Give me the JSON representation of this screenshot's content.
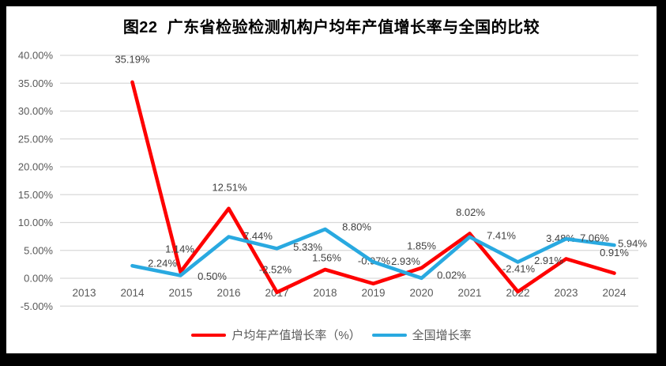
{
  "title": "图22  广东省检验检测机构户均年产值增长率与全国的比较",
  "chart_data": {
    "type": "line",
    "title": "图22  广东省检验检测机构户均年产值增长率与全国的比较",
    "categories": [
      "2013",
      "2014",
      "2015",
      "2016",
      "2017",
      "2018",
      "2019",
      "2020",
      "2021",
      "2022",
      "2023",
      "2024"
    ],
    "series": [
      {
        "name": "户均年产值增长率（%）",
        "color": "#FE0000",
        "values": [
          null,
          35.19,
          1.14,
          12.51,
          -2.52,
          1.56,
          -0.97,
          1.85,
          8.02,
          -2.41,
          3.48,
          0.91
        ],
        "labels": [
          "",
          "35.19%",
          "1.14%",
          "12.51%",
          "-2.52%",
          "1.56%",
          "-0.97%",
          "1.85%",
          "8.02%",
          "-2.41%",
          "3.48%",
          "0.91%"
        ]
      },
      {
        "name": "全国增长率",
        "color": "#29A9E0",
        "values": [
          null,
          2.24,
          0.5,
          7.44,
          5.33,
          8.8,
          2.93,
          0.02,
          7.41,
          2.91,
          7.06,
          5.94
        ],
        "labels": [
          "",
          "2.24%",
          "0.50%",
          "7.44%",
          "5.33%",
          "8.80%",
          "2.93%",
          "0.02%",
          "7.41%",
          "2.91%",
          "7.06%",
          "5.94%"
        ]
      }
    ],
    "ylim": [
      -5,
      40
    ],
    "ytick_labels": [
      "40.00%",
      "35.00%",
      "30.00%",
      "25.00%",
      "20.00%",
      "15.00%",
      "10.00%",
      "5.00%",
      "0.00%",
      "-5.00%"
    ],
    "xlabel": "",
    "ylabel": "",
    "grid": true,
    "data_labels": true,
    "legend_position": "bottom",
    "colors": {
      "gridline": "#D9D9D9",
      "tick_text": "#595959",
      "data_label_text": "#404040",
      "background": "#FFFFFF",
      "frame": "#000000"
    }
  }
}
